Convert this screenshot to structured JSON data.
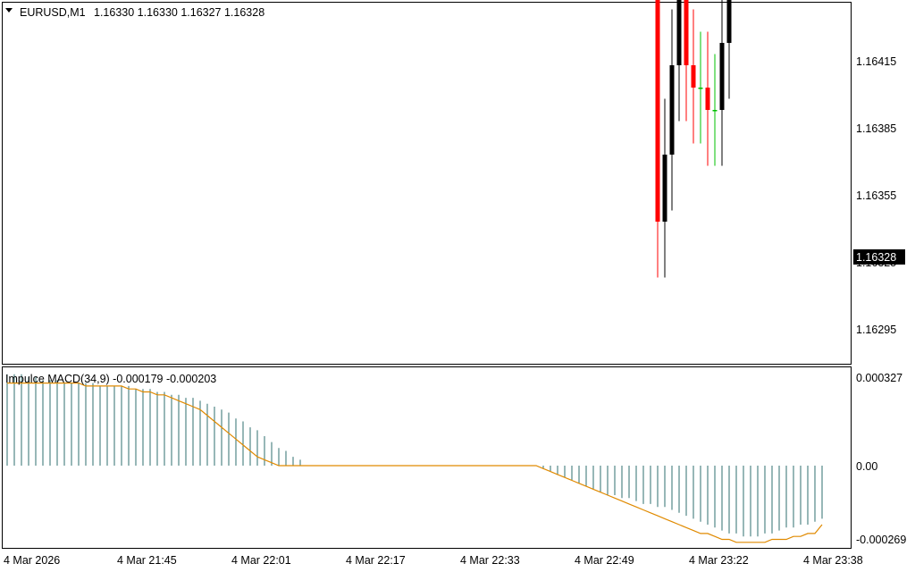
{
  "window": {
    "symbol_timeframe": "EURUSD,M1",
    "ohlc": "1.16330 1.16330 1.16327 1.16328",
    "menu_arrow_icon": "triangle-down-icon"
  },
  "indicator": {
    "label": "Impulce MACD(34,9) -0.000179 -0.000203"
  },
  "colors": {
    "bull_candle": "#000000",
    "bear_candle": "#ff0000",
    "doji_candle": "#00c000",
    "histogram": "#2f6f6f",
    "signal_line": "#e08a00",
    "price_tag_bg": "#000000",
    "price_tag_text": "#ffffff"
  },
  "chart_data": [
    {
      "type": "candlestick",
      "title": "EURUSD,M1",
      "current_price": "1.16328",
      "y_ticks": [
        "1.16415",
        "1.16385",
        "1.16355",
        "1.16325",
        "1.16295"
      ],
      "ylim": [
        1.16287,
        1.16443
      ],
      "x_ticks": [
        "4 Mar 2026",
        "4 Mar 21:45",
        "4 Mar 22:01",
        "4 Mar 22:17",
        "4 Mar 22:33",
        "4 Mar 22:49",
        "4 Mar 23:22",
        "4 Mar 23:38"
      ],
      "grid": false,
      "close": [
        1.164,
        1.164,
        1.1639,
        1.164,
        1.164,
        1.1641,
        1.1642,
        1.1643,
        1.1643,
        1.16431,
        1.16433,
        1.16434,
        1.1643,
        1.16424,
        1.16425,
        1.16426,
        1.1643,
        1.1642,
        1.1641,
        1.1641,
        1.16405,
        1.164,
        1.16393,
        1.16403,
        1.1641,
        1.1642,
        1.16412,
        1.16412,
        1.16418,
        1.16403,
        1.164,
        1.1639,
        1.16387,
        1.16385,
        1.16382,
        1.1638,
        1.16375,
        1.16375,
        1.1638,
        1.1638,
        1.1638,
        1.16376,
        1.1637,
        1.16371,
        1.16373,
        1.16377,
        1.16385,
        1.16391,
        1.16392,
        1.16392,
        1.16398,
        1.1641,
        1.16412,
        1.16418,
        1.16412,
        1.16404,
        1.164,
        1.1639,
        1.1639,
        1.16388,
        1.16385,
        1.16384,
        1.16392,
        1.16402,
        1.16386,
        1.1638,
        1.16379,
        1.1638,
        1.16373,
        1.16361,
        1.1636,
        1.16358,
        1.16353,
        1.16353,
        1.16352,
        1.16351,
        1.16352,
        1.16356,
        1.16352,
        1.16352,
        1.1635,
        1.16354,
        1.16358,
        1.1636,
        1.16361,
        1.16362,
        1.16357,
        1.16347,
        1.16342,
        1.1633,
        1.1632,
        1.163,
        1.16303,
        1.16307,
        1.1631,
        1.16307,
        1.16306,
        1.16306,
        1.16305,
        1.16305,
        1.16308,
        1.16313,
        1.16318,
        1.1632,
        1.1633,
        1.16328,
        1.16328,
        1.16328,
        1.16328,
        1.16329,
        1.16329,
        1.1633,
        1.16328,
        1.16328,
        1.16328
      ]
    },
    {
      "type": "histogram+line",
      "title": "Impulce MACD(34,9)",
      "values_shown": [
        "-0.000179",
        "-0.000203"
      ],
      "y_ticks": [
        "0.000327",
        "0.00",
        "-0.000269"
      ],
      "ylim": [
        -0.000269,
        0.000327
      ],
      "grid": false,
      "histogram": [
        0.00031,
        0.00031,
        0.00031,
        0.0003,
        0.0003,
        0.00029,
        0.00029,
        0.00029,
        0.00028,
        0.00028,
        0.00028,
        0.00028,
        0.00028,
        0.00027,
        0.00027,
        0.00027,
        0.00027,
        0.00027,
        0.00026,
        0.00026,
        0.00026,
        0.00025,
        0.00025,
        0.00024,
        0.00024,
        0.00023,
        0.00023,
        0.00022,
        0.00021,
        0.0002,
        0.00019,
        0.00018,
        0.00016,
        0.00015,
        0.00013,
        0.00012,
        0.0001,
        8e-05,
        6e-05,
        5e-05,
        3e-05,
        2e-05,
        0,
        0,
        0,
        0,
        0,
        0,
        0,
        0,
        0,
        0,
        0,
        0,
        0,
        0,
        0,
        0,
        0,
        0,
        0,
        0,
        0,
        0,
        0,
        0,
        0,
        0,
        0,
        0,
        0,
        0,
        0,
        0,
        0,
        -1e-05,
        -2e-05,
        -3e-05,
        -4e-05,
        -5e-05,
        -6e-05,
        -7e-05,
        -8e-05,
        -9e-05,
        -0.0001,
        -0.0001,
        -0.00011,
        -0.00011,
        -0.00012,
        -0.00013,
        -0.00013,
        -0.00014,
        -0.00014,
        -0.00015,
        -0.00016,
        -0.00017,
        -0.00018,
        -0.00019,
        -0.0002,
        -0.00021,
        -0.00022,
        -0.00023,
        -0.00023,
        -0.00024,
        -0.00024,
        -0.00024,
        -0.00023,
        -0.00023,
        -0.00022,
        -0.00021,
        -0.00021,
        -0.0002,
        -0.0002,
        -0.00019,
        -0.00018
      ],
      "signal": [
        0.00028,
        0.00028,
        0.00028,
        0.00028,
        0.00028,
        0.00028,
        0.00028,
        0.00028,
        0.00028,
        0.00028,
        0.00028,
        0.00027,
        0.00027,
        0.00027,
        0.00027,
        0.00027,
        0.00027,
        0.00026,
        0.00026,
        0.00025,
        0.00025,
        0.00024,
        0.00024,
        0.00023,
        0.00022,
        0.00021,
        0.0002,
        0.00019,
        0.00017,
        0.00015,
        0.00013,
        0.00011,
        9e-05,
        7e-05,
        5e-05,
        3e-05,
        2e-05,
        1e-05,
        0,
        0,
        0,
        0,
        0,
        0,
        0,
        0,
        0,
        0,
        0,
        0,
        0,
        0,
        0,
        0,
        0,
        0,
        0,
        0,
        0,
        0,
        0,
        0,
        0,
        0,
        0,
        0,
        0,
        0,
        0,
        0,
        0,
        0,
        0,
        0,
        0,
        -1e-05,
        -2e-05,
        -3e-05,
        -4e-05,
        -5e-05,
        -6e-05,
        -7e-05,
        -8e-05,
        -9e-05,
        -0.0001,
        -0.00011,
        -0.00012,
        -0.00013,
        -0.00014,
        -0.00015,
        -0.00016,
        -0.00017,
        -0.00018,
        -0.00019,
        -0.0002,
        -0.00021,
        -0.00022,
        -0.00023,
        -0.00023,
        -0.00024,
        -0.00025,
        -0.00025,
        -0.00026,
        -0.00026,
        -0.00026,
        -0.00026,
        -0.00026,
        -0.00025,
        -0.00025,
        -0.00025,
        -0.00024,
        -0.00024,
        -0.00023,
        -0.00023,
        -0.0002
      ]
    }
  ]
}
